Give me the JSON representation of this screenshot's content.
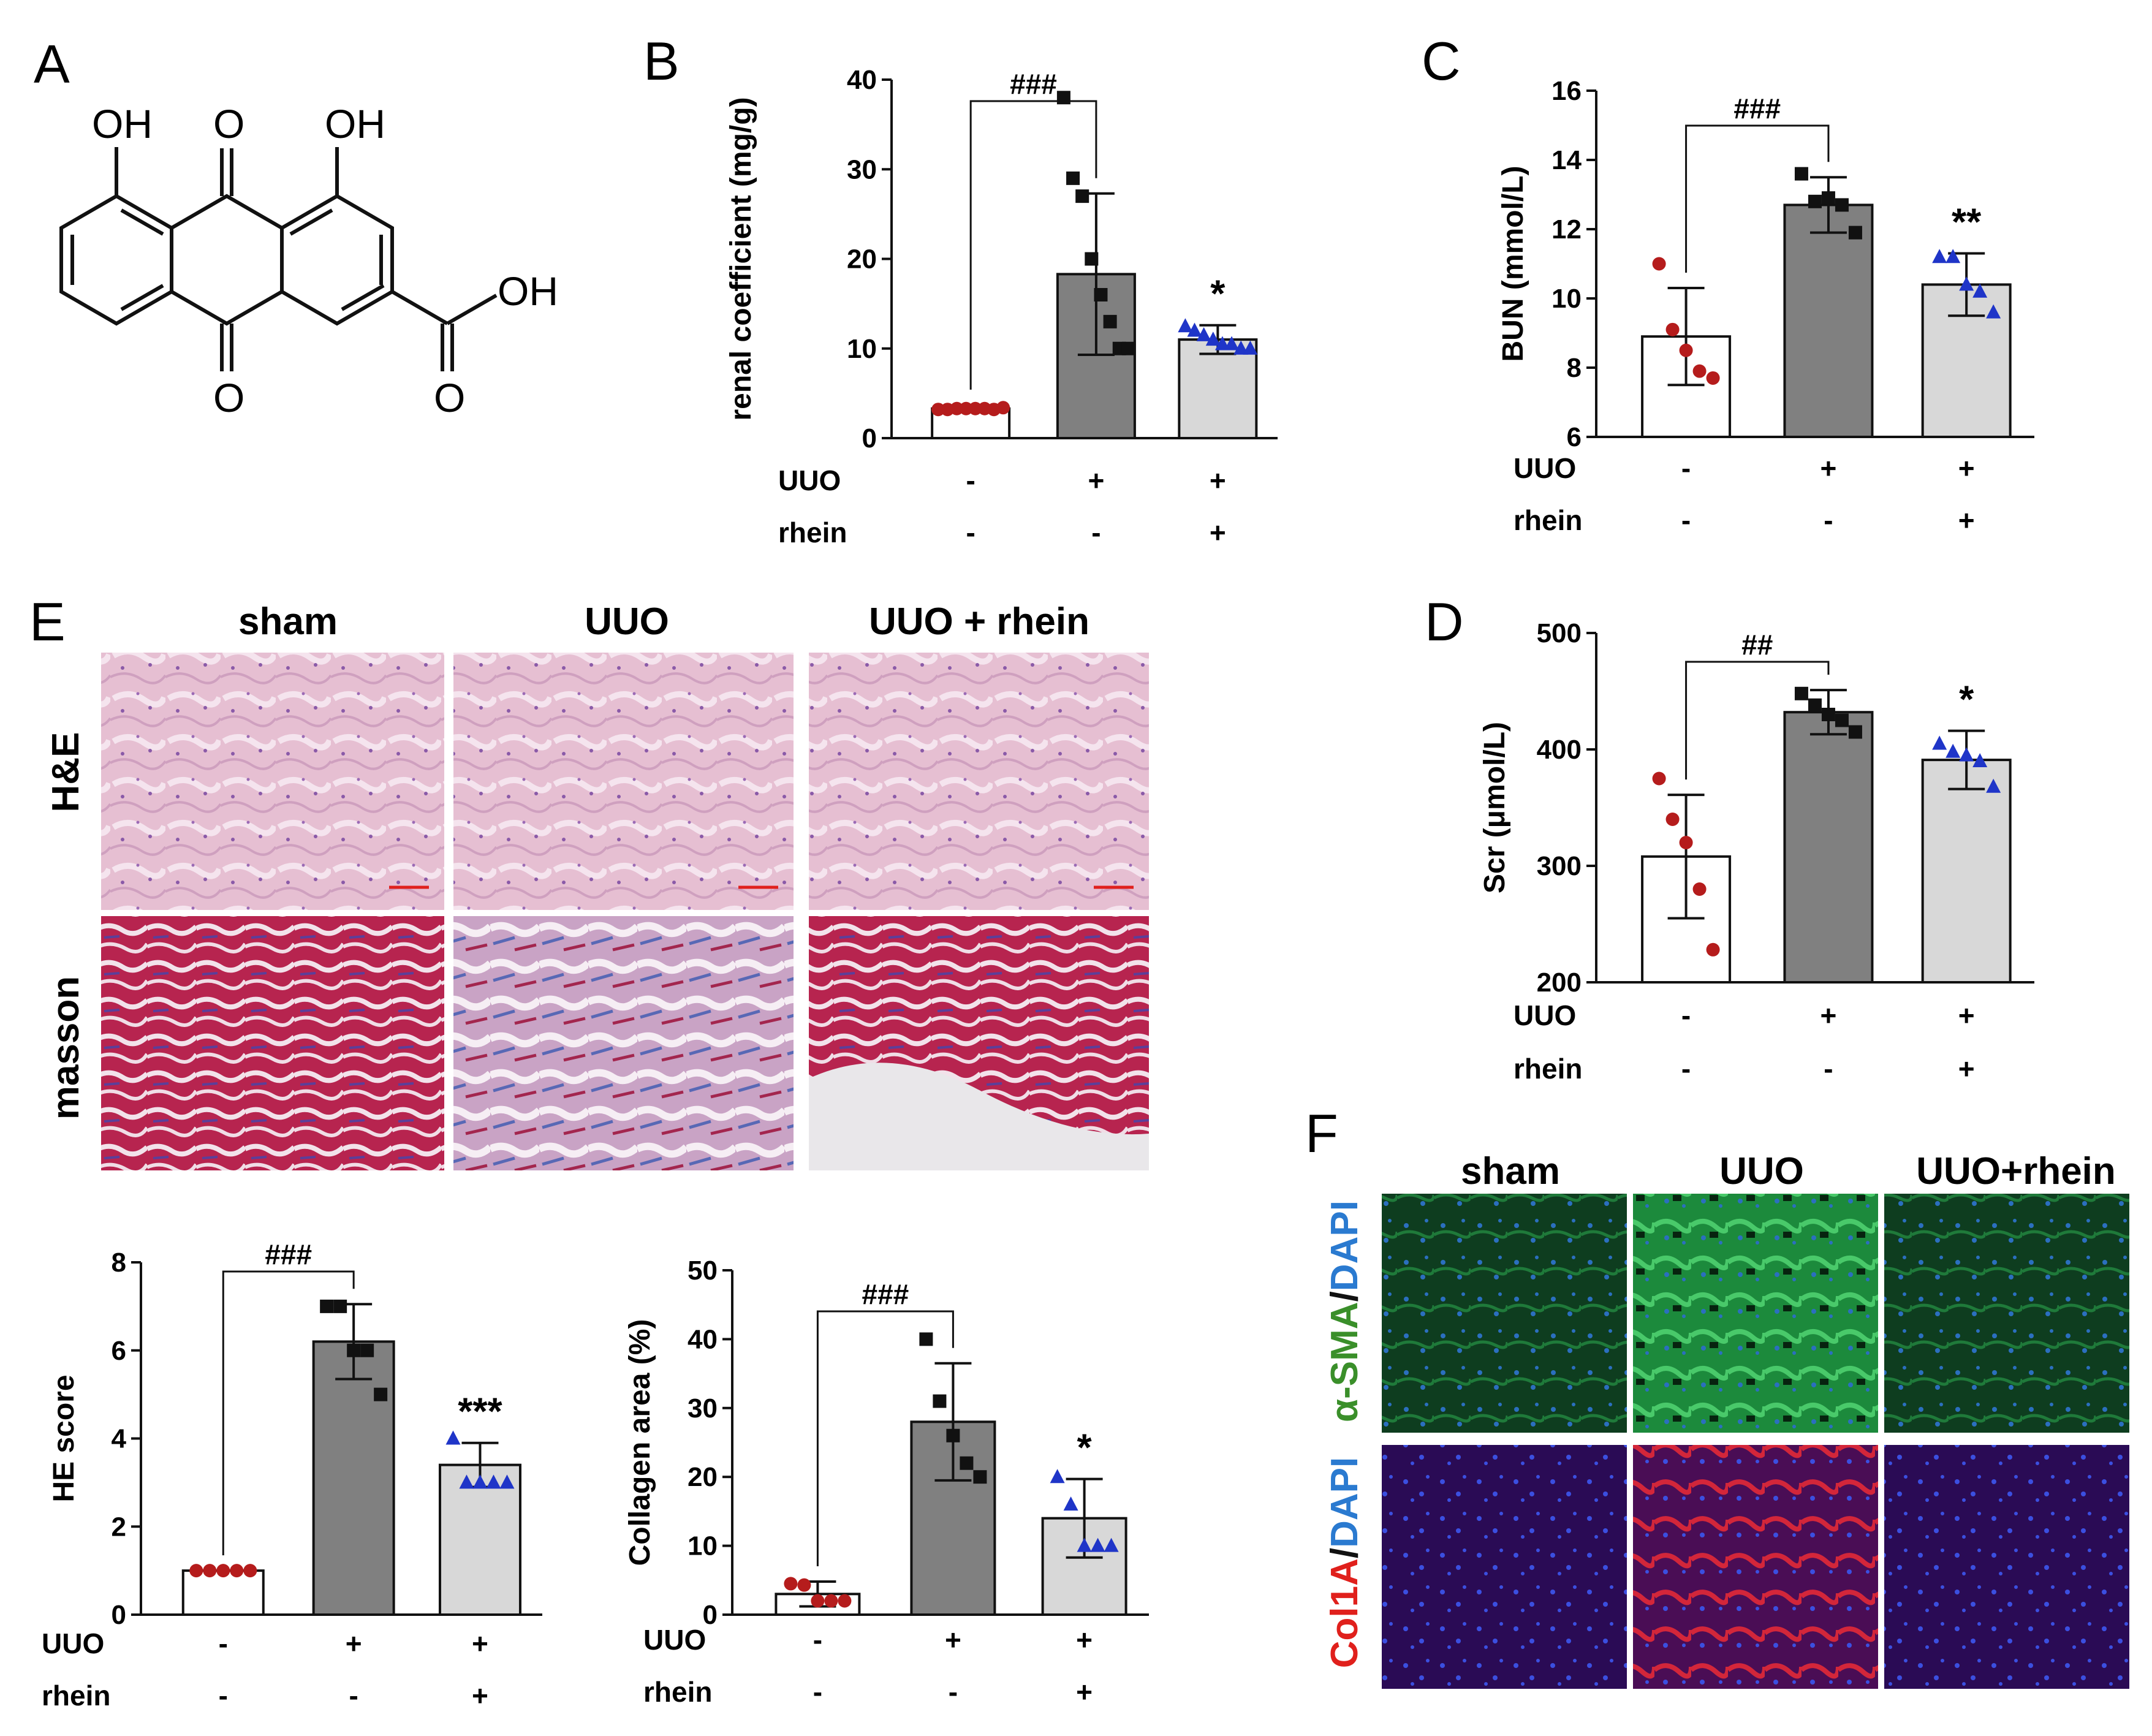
{
  "colors": {
    "sham_bar": "#ffffff",
    "uuo_bar": "#808080",
    "rhein_bar": "#d8d8d8",
    "sham_points": "#b51c1c",
    "uuo_points": "#111111",
    "rhein_points": "#1f35c8",
    "he_tissue": "#e3b7cc",
    "masson_tissue": "#b1224a",
    "green_if": "#0c4a1e",
    "red_if": "#3a0a5a"
  },
  "panels": {
    "A": "A",
    "B": "B",
    "C": "C",
    "D": "D",
    "E": "E",
    "F": "F"
  },
  "molecule": {
    "oh1": "OH",
    "o_top": "O",
    "oh2": "OH",
    "oh_acid": "OH",
    "o_bottom": "O",
    "o_acid": "O"
  },
  "conditions": {
    "row1_label": "UUO",
    "row2_label": "rhein",
    "row1": [
      "-",
      "+",
      "+"
    ],
    "row2": [
      "-",
      "-",
      "+"
    ]
  },
  "histology": {
    "cols": [
      "sham",
      "UUO",
      "UUO + rhein"
    ],
    "rows": [
      "H&E",
      "masson"
    ]
  },
  "immuno": {
    "cols": [
      "sham",
      "UUO",
      "UUO+rhein"
    ],
    "row1_label_parts": [
      "α-SMA",
      "/",
      "DAPI"
    ],
    "row2_label_parts": [
      "Col1A",
      "/",
      "DAPI"
    ]
  },
  "chart_data": [
    {
      "id": "B",
      "type": "bar",
      "categories": [
        "sham",
        "UUO",
        "UUO+rhein"
      ],
      "values": [
        3.3,
        18.3,
        11.0
      ],
      "errors": [
        0.4,
        9.0,
        1.6
      ],
      "points": [
        [
          3.2,
          3.2,
          3.3,
          3.3,
          3.3,
          3.3,
          3.2,
          3.4
        ],
        [
          38.0,
          29.0,
          27.0,
          20.0,
          16.0,
          13.0,
          10.0,
          10.0
        ],
        [
          12.5,
          12.0,
          11.5,
          11.0,
          10.5,
          10.5,
          10.0,
          10.0
        ]
      ],
      "ylabel": "renal coefficient (mg/g)",
      "ylim": [
        0,
        40
      ],
      "yticks": [
        0,
        10,
        20,
        30,
        40
      ],
      "sig_pair": "###",
      "sig_treat": "*"
    },
    {
      "id": "C",
      "type": "bar",
      "categories": [
        "sham",
        "UUO",
        "UUO+rhein"
      ],
      "values": [
        8.9,
        12.7,
        10.4
      ],
      "errors": [
        1.4,
        0.8,
        0.9
      ],
      "points": [
        [
          11.0,
          9.1,
          8.5,
          7.9,
          7.7
        ],
        [
          13.6,
          12.8,
          12.9,
          12.7,
          11.9
        ],
        [
          11.2,
          11.2,
          10.4,
          10.2,
          9.6
        ]
      ],
      "ylabel": "BUN (mmol/L)",
      "ylim": [
        6,
        16
      ],
      "yticks": [
        6,
        8,
        10,
        12,
        14,
        16
      ],
      "sig_pair": "###",
      "sig_treat": "**"
    },
    {
      "id": "D",
      "type": "bar",
      "categories": [
        "sham",
        "UUO",
        "UUO+rhein"
      ],
      "values": [
        308,
        432,
        391
      ],
      "errors": [
        53,
        19,
        25
      ],
      "points": [
        [
          375,
          340,
          320,
          280,
          228
        ],
        [
          448,
          438,
          430,
          425,
          415
        ],
        [
          405,
          398,
          395,
          390,
          368
        ]
      ],
      "ylabel": "Scr (μmol/L)",
      "ylim": [
        200,
        500
      ],
      "yticks": [
        200,
        300,
        400,
        500
      ],
      "sig_pair": "##",
      "sig_treat": "*"
    },
    {
      "id": "HE",
      "type": "bar",
      "categories": [
        "sham",
        "UUO",
        "UUO+rhein"
      ],
      "values": [
        1.0,
        6.2,
        3.4
      ],
      "errors": [
        0.0,
        0.85,
        0.5
      ],
      "points": [
        [
          1.0,
          1.0,
          1.0,
          1.0,
          1.0
        ],
        [
          7.0,
          7.0,
          6.0,
          6.0,
          5.0
        ],
        [
          4.0,
          3.0,
          3.0,
          3.0,
          3.0
        ]
      ],
      "ylabel": "HE score",
      "ylim": [
        0,
        8
      ],
      "yticks": [
        0,
        2,
        4,
        6,
        8
      ],
      "sig_pair": "###",
      "sig_treat": "***"
    },
    {
      "id": "COL",
      "type": "bar",
      "categories": [
        "sham",
        "UUO",
        "UUO+rhein"
      ],
      "values": [
        3.0,
        28.0,
        14.0
      ],
      "errors": [
        1.8,
        8.5,
        5.7
      ],
      "points": [
        [
          4.5,
          4.3,
          2.0,
          2.0,
          2.0
        ],
        [
          40.0,
          31.0,
          26.0,
          22.0,
          20.0
        ],
        [
          20.0,
          16.0,
          10.0,
          10.0,
          10.0
        ]
      ],
      "ylabel": "Collagen area (%)",
      "ylim": [
        0,
        50
      ],
      "yticks": [
        0,
        10,
        20,
        30,
        40,
        50
      ],
      "sig_pair": "###",
      "sig_treat": "*"
    }
  ]
}
